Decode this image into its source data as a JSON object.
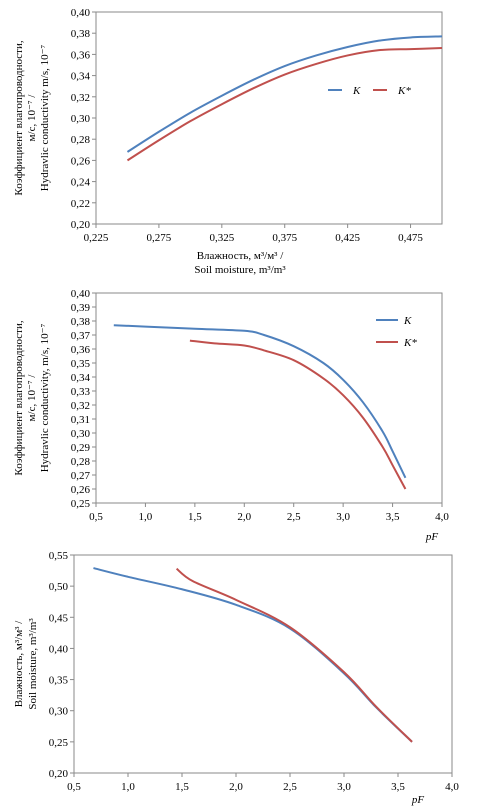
{
  "chart_data": [
    {
      "type": "line",
      "grid": false,
      "legend_placement": "right",
      "xlabel_lines": [
        "Влажность, м³/м³ /",
        "Soil moisture, m³/m³"
      ],
      "ylabel_lines": [
        "Коэффициент влагопроводности,",
        "м/с, 10⁻⁷ /",
        "Hydravlic conductivity m/s, 10⁻⁷"
      ],
      "xlim": [
        0.225,
        0.5
      ],
      "ylim": [
        0.2,
        0.4
      ],
      "xticks": [
        "0,225",
        "0,275",
        "0,325",
        "0,375",
        "0,425",
        "0,475"
      ],
      "yticks": [
        "0,20",
        "0,22",
        "0,24",
        "0,26",
        "0,28",
        "0,30",
        "0,32",
        "0,34",
        "0,36",
        "0,38",
        "0,40"
      ],
      "series": [
        {
          "name": "K",
          "color": "#4f81bd",
          "x": [
            0.25,
            0.275,
            0.3,
            0.325,
            0.35,
            0.375,
            0.4,
            0.425,
            0.45,
            0.475,
            0.5
          ],
          "y": [
            0.268,
            0.287,
            0.305,
            0.321,
            0.336,
            0.349,
            0.359,
            0.367,
            0.373,
            0.376,
            0.377
          ]
        },
        {
          "name": "K*",
          "color": "#c0504d",
          "x": [
            0.25,
            0.275,
            0.3,
            0.325,
            0.35,
            0.375,
            0.4,
            0.425,
            0.45,
            0.475,
            0.5
          ],
          "y": [
            0.26,
            0.279,
            0.297,
            0.313,
            0.328,
            0.341,
            0.351,
            0.359,
            0.364,
            0.365,
            0.366
          ]
        }
      ]
    },
    {
      "type": "line",
      "grid": false,
      "legend_placement": "top-right",
      "xlabel_lines": [
        "pF"
      ],
      "ylabel_lines": [
        "Коэффициент влагопроводности,",
        "м/с, 10⁻⁷ /",
        "Hydravlic conductivity, m/s, 10⁻⁷"
      ],
      "xlim": [
        0.5,
        4.0
      ],
      "ylim": [
        0.25,
        0.4
      ],
      "xticks": [
        "0,5",
        "1,0",
        "1,5",
        "2,0",
        "2,5",
        "3,0",
        "3,5",
        "4,0"
      ],
      "yticks": [
        "0,25",
        "0,26",
        "0,27",
        "0,28",
        "0,29",
        "0,30",
        "0,31",
        "0,32",
        "0,33",
        "0,34",
        "0,35",
        "0,36",
        "0,37",
        "0,38",
        "0,39",
        "0,40"
      ],
      "series": [
        {
          "name": "K",
          "color": "#4f81bd",
          "x": [
            0.68,
            1.0,
            1.5,
            2.0,
            2.2,
            2.5,
            2.8,
            3.0,
            3.2,
            3.4,
            3.5,
            3.63
          ],
          "y": [
            0.377,
            0.376,
            0.3745,
            0.373,
            0.37,
            0.362,
            0.35,
            0.338,
            0.322,
            0.301,
            0.287,
            0.268
          ]
        },
        {
          "name": "K*",
          "color": "#c0504d",
          "x": [
            1.45,
            1.7,
            2.0,
            2.2,
            2.5,
            2.8,
            3.0,
            3.2,
            3.4,
            3.5,
            3.63
          ],
          "y": [
            0.366,
            0.364,
            0.3625,
            0.359,
            0.352,
            0.339,
            0.327,
            0.311,
            0.29,
            0.277,
            0.26
          ]
        }
      ]
    },
    {
      "type": "line",
      "grid": false,
      "xlabel_lines": [
        "pF"
      ],
      "ylabel_lines": [
        "Влажность, м³/м³ /",
        "Soil moisture, m³/m³"
      ],
      "xlim": [
        0.5,
        4.0
      ],
      "ylim": [
        0.2,
        0.55
      ],
      "xticks": [
        "0,5",
        "1,0",
        "1,5",
        "2,0",
        "2,5",
        "3,0",
        "3,5",
        "4,0"
      ],
      "yticks": [
        "0,20",
        "0,25",
        "0,30",
        "0,35",
        "0,40",
        "0,45",
        "0,50",
        "0,55"
      ],
      "series": [
        {
          "color": "#4f81bd",
          "x": [
            0.68,
            1.0,
            1.5,
            2.0,
            2.5,
            3.0,
            3.3,
            3.63
          ],
          "y": [
            0.529,
            0.515,
            0.495,
            0.47,
            0.432,
            0.36,
            0.305,
            0.25
          ]
        },
        {
          "color": "#c0504d",
          "x": [
            1.45,
            1.6,
            2.0,
            2.5,
            3.0,
            3.3,
            3.63
          ],
          "y": [
            0.528,
            0.508,
            0.478,
            0.434,
            0.362,
            0.306,
            0.25
          ]
        }
      ]
    }
  ]
}
